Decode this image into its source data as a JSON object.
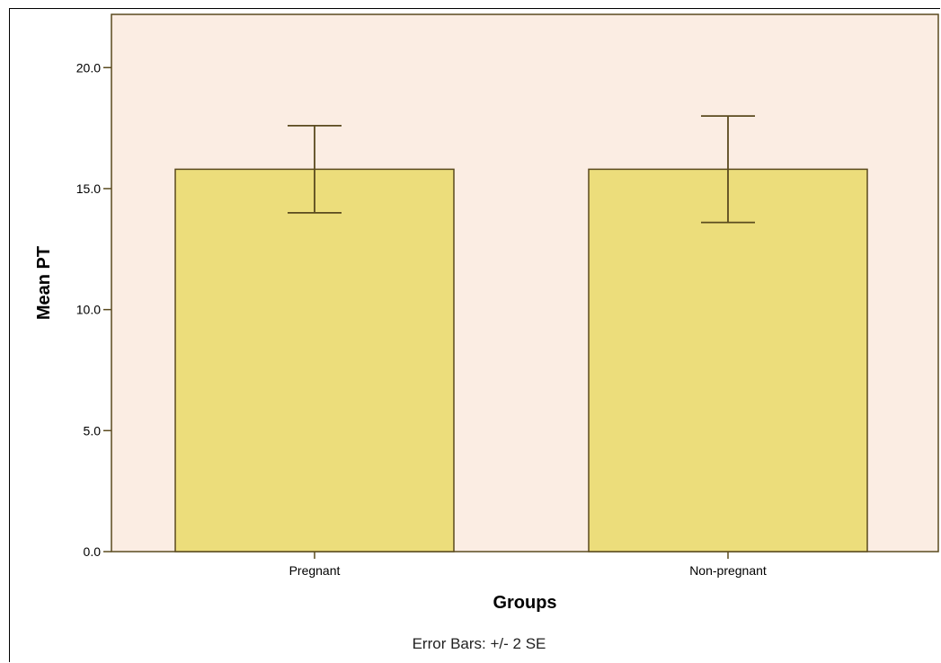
{
  "chart_data": {
    "type": "bar",
    "categories": [
      "Pregnant",
      "Non-pregnant"
    ],
    "values": [
      15.8,
      15.8
    ],
    "error_low": [
      14.0,
      13.6
    ],
    "error_high": [
      17.6,
      18.0
    ],
    "xlabel": "Groups",
    "ylabel": "Mean PT",
    "ylim": [
      0,
      22.2
    ],
    "yticks": [
      0,
      5,
      10,
      15,
      20
    ],
    "ytick_labels": [
      "0.0",
      "5.0",
      "10.0",
      "15.0",
      "20.0"
    ],
    "footnote": "Error Bars: +/- 2 SE",
    "grid": false
  },
  "colors": {
    "plot_background": "#fbede3",
    "bar_fill": "#ecdd7b",
    "bar_stroke": "#5a4a1e",
    "axis": "#5a4a1e"
  }
}
